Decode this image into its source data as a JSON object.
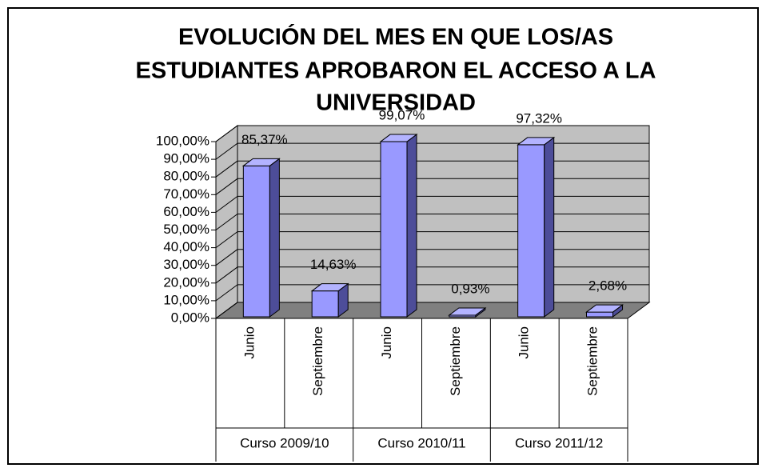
{
  "chart_data": {
    "type": "bar3d",
    "title": [
      "EVOLUCIÓN DEL MES EN QUE LOS/AS",
      "ESTUDIANTES APROBARON EL ACCESO A LA",
      "UNIVERSIDAD"
    ],
    "categories": [
      "Junio",
      "Septiembre",
      "Junio",
      "Septiembre",
      "Junio",
      "Septiembre"
    ],
    "category_groups": [
      "Curso 2009/10",
      "Curso 2010/11",
      "Curso 2011/12"
    ],
    "values": [
      85.37,
      14.63,
      99.07,
      0.93,
      97.32,
      2.68
    ],
    "value_labels": [
      "85,37%",
      "14,63%",
      "99,07%",
      "0,93%",
      "97,32%",
      "2,68%"
    ],
    "color": "#9999ff",
    "ylim": [
      0,
      100
    ],
    "yticks": [
      {
        "value": 0,
        "label": "0,00%"
      },
      {
        "value": 10,
        "label": "10,00%"
      },
      {
        "value": 20,
        "label": "20,00%"
      },
      {
        "value": 30,
        "label": "30,00%"
      },
      {
        "value": 40,
        "label": "40,00%"
      },
      {
        "value": 50,
        "label": "50,00%"
      },
      {
        "value": 60,
        "label": "60,00%"
      },
      {
        "value": 70,
        "label": "70,00%"
      },
      {
        "value": 80,
        "label": "80,00%"
      },
      {
        "value": 90,
        "label": "90,00%"
      },
      {
        "value": 100,
        "label": "100,00%"
      }
    ],
    "grid": true
  }
}
